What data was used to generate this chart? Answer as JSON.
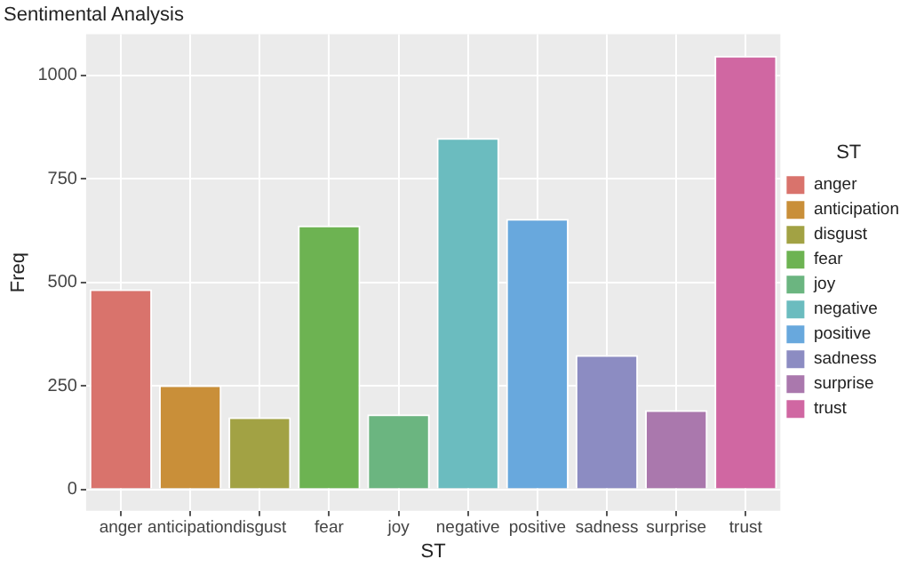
{
  "chart_data": {
    "type": "bar",
    "title": "Sentimental Analysis",
    "xlabel": "ST",
    "ylabel": "Freq",
    "legend_title": "ST",
    "categories": [
      "anger",
      "anticipation",
      "disgust",
      "fear",
      "joy",
      "negative",
      "positive",
      "sadness",
      "surprise",
      "trust"
    ],
    "series": [
      {
        "name": "anger",
        "color": "#d9736c",
        "values": [
          483,
          null,
          null,
          null,
          null,
          null,
          null,
          null,
          null,
          null
        ]
      },
      {
        "name": "anticipation",
        "color": "#c98f39",
        "values": [
          null,
          251,
          null,
          null,
          null,
          null,
          null,
          null,
          null,
          null
        ]
      },
      {
        "name": "disgust",
        "color": "#a2a244",
        "values": [
          null,
          null,
          174,
          null,
          null,
          null,
          null,
          null,
          null,
          null
        ]
      },
      {
        "name": "fear",
        "color": "#6db352",
        "values": [
          null,
          null,
          null,
          637,
          null,
          null,
          null,
          null,
          null,
          null
        ]
      },
      {
        "name": "joy",
        "color": "#6bb580",
        "values": [
          null,
          null,
          null,
          null,
          181,
          null,
          null,
          null,
          null,
          null
        ]
      },
      {
        "name": "negative",
        "color": "#6bbcbf",
        "values": [
          null,
          null,
          null,
          null,
          null,
          848,
          null,
          null,
          null,
          null
        ]
      },
      {
        "name": "positive",
        "color": "#68a8dd",
        "values": [
          null,
          null,
          null,
          null,
          null,
          null,
          653,
          null,
          null,
          null
        ]
      },
      {
        "name": "sadness",
        "color": "#8c8cc2",
        "values": [
          null,
          null,
          null,
          null,
          null,
          null,
          null,
          324,
          null,
          null
        ]
      },
      {
        "name": "surprise",
        "color": "#aa78ad",
        "values": [
          null,
          null,
          null,
          null,
          null,
          null,
          null,
          null,
          191,
          null
        ]
      },
      {
        "name": "trust",
        "color": "#d067a2",
        "values": [
          null,
          null,
          null,
          null,
          null,
          null,
          null,
          null,
          null,
          1047
        ]
      }
    ],
    "ylim": [
      -52,
      1099
    ],
    "yticks": [
      0,
      250,
      500,
      750,
      1000
    ],
    "grid": true,
    "legend": "right"
  }
}
